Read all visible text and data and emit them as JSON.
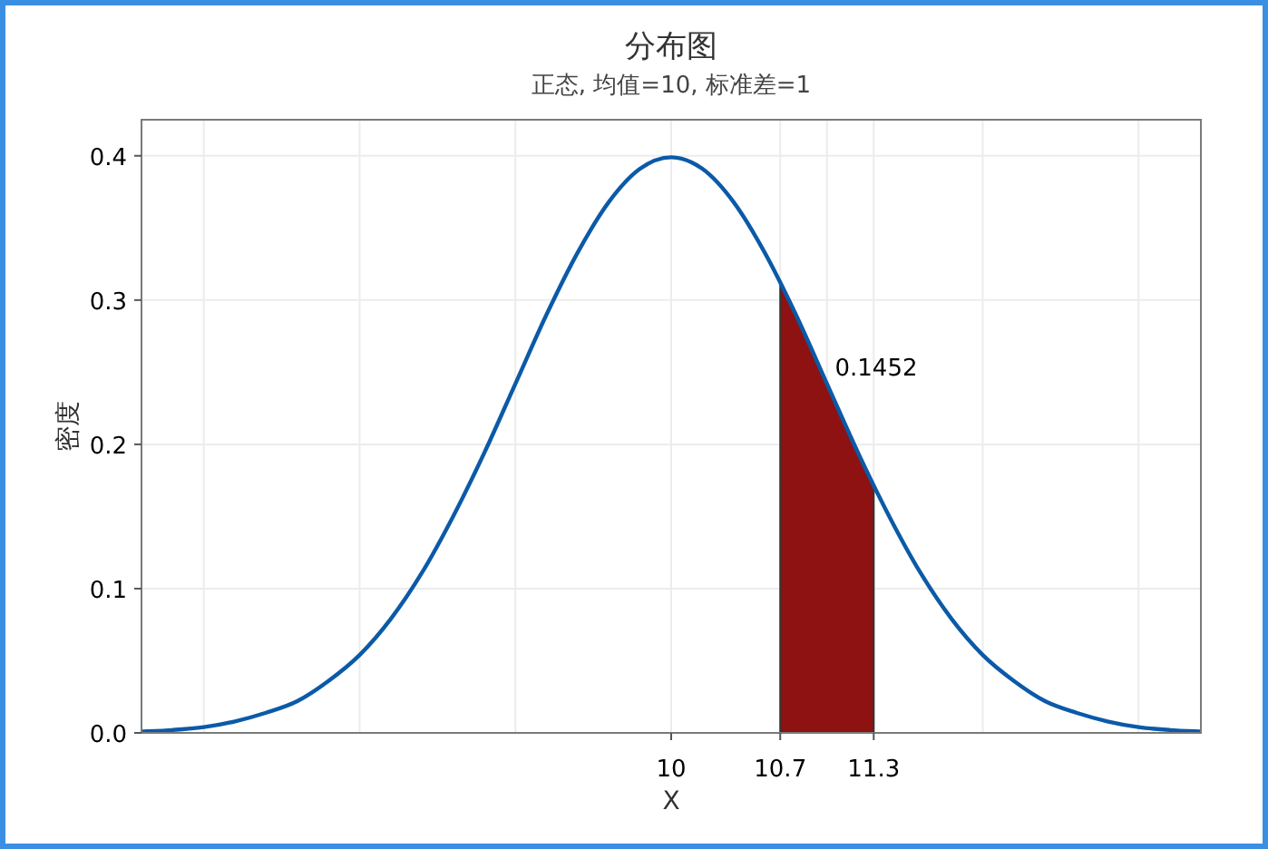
{
  "chart_data": {
    "type": "line",
    "title": "分布图",
    "subtitle": "正态, 均值=10, 标准差=1",
    "xlabel": "X",
    "ylabel": "密度",
    "series": [
      {
        "color": "#0b5aa8",
        "x": [
          6.6,
          6.8,
          7.0,
          7.2,
          7.4,
          7.6,
          7.8,
          8.0,
          8.2,
          8.4,
          8.6,
          8.8,
          9.0,
          9.2,
          9.4,
          9.6,
          9.8,
          10.0,
          10.2,
          10.4,
          10.6,
          10.8,
          11.0,
          11.2,
          11.4,
          11.6,
          11.8,
          12.0,
          12.2,
          12.4,
          12.6,
          12.8,
          13.0,
          13.2,
          13.4
        ],
        "values": [
          0.001,
          0.002,
          0.004,
          0.008,
          0.014,
          0.022,
          0.036,
          0.054,
          0.079,
          0.111,
          0.15,
          0.194,
          0.242,
          0.29,
          0.333,
          0.368,
          0.391,
          0.399,
          0.391,
          0.368,
          0.333,
          0.29,
          0.242,
          0.194,
          0.15,
          0.111,
          0.079,
          0.054,
          0.036,
          0.022,
          0.014,
          0.008,
          0.004,
          0.002,
          0.001
        ]
      },
      {
        "type": "area",
        "color": "#8e1212",
        "x": [
          10.7,
          10.8,
          10.9,
          11.0,
          11.1,
          11.2,
          11.3
        ],
        "values": [
          0.312,
          0.29,
          0.266,
          0.242,
          0.218,
          0.194,
          0.171
        ]
      }
    ],
    "xlim": [
      6.6,
      13.4
    ],
    "ylim": [
      0,
      0.425
    ],
    "xticks": [
      {
        "value": 7,
        "label": null
      },
      {
        "value": 8,
        "label": null
      },
      {
        "value": 9,
        "label": null
      },
      10,
      10.7,
      11.3,
      {
        "value": 11,
        "label": null
      },
      {
        "value": 12,
        "label": null
      },
      {
        "value": 13,
        "label": null
      }
    ],
    "yticks": [
      {
        "value": 0,
        "label": "0.0"
      },
      0.1,
      0.2,
      0.3,
      0.4
    ],
    "grid": true,
    "annotations": [
      "0.1452"
    ]
  }
}
